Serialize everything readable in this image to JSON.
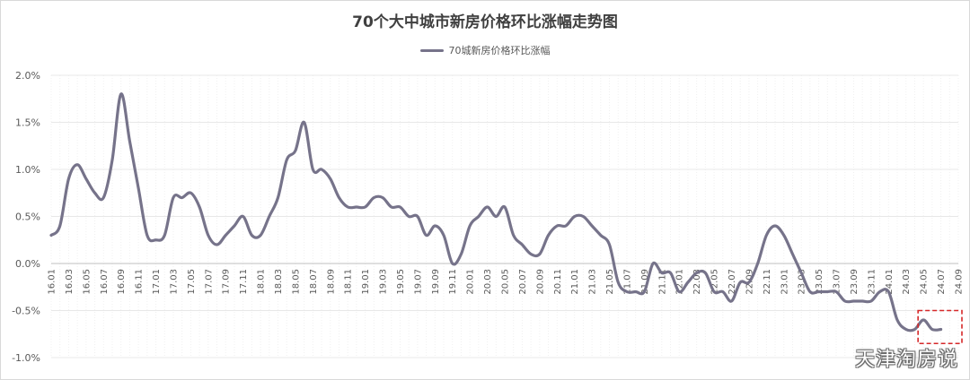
{
  "chart_data": {
    "type": "line",
    "title": "70个大中城市新房价格环比涨幅走势图",
    "legend_position": "top",
    "grid": true,
    "series": [
      {
        "name": "70城新房价格环比涨幅",
        "color": "#76738a",
        "values": [
          0.3,
          0.4,
          0.9,
          1.05,
          0.9,
          0.75,
          0.7,
          1.1,
          1.8,
          1.3,
          0.8,
          0.3,
          0.25,
          0.3,
          0.7,
          0.7,
          0.75,
          0.6,
          0.3,
          0.2,
          0.3,
          0.4,
          0.5,
          0.3,
          0.3,
          0.5,
          0.7,
          1.1,
          1.2,
          1.5,
          1.0,
          1.0,
          0.9,
          0.7,
          0.6,
          0.6,
          0.6,
          0.7,
          0.7,
          0.6,
          0.6,
          0.5,
          0.5,
          0.3,
          0.4,
          0.3,
          0.0,
          0.1,
          0.4,
          0.5,
          0.6,
          0.5,
          0.6,
          0.3,
          0.2,
          0.1,
          0.1,
          0.3,
          0.4,
          0.4,
          0.5,
          0.5,
          0.4,
          0.3,
          0.2,
          -0.2,
          -0.3,
          -0.3,
          -0.3,
          0.0,
          -0.1,
          -0.1,
          -0.3,
          -0.2,
          -0.1,
          -0.1,
          -0.3,
          -0.3,
          -0.4,
          -0.2,
          -0.2,
          0.0,
          0.3,
          0.4,
          0.3,
          0.1,
          -0.1,
          -0.3,
          -0.3,
          -0.3,
          -0.3,
          -0.4,
          -0.4,
          -0.4,
          -0.4,
          -0.3,
          -0.3,
          -0.6,
          -0.7,
          -0.7,
          -0.6,
          -0.7,
          -0.7
        ]
      }
    ],
    "x_start": "2016-01",
    "x_end": "2024-09",
    "tick_labels": [
      "16.01",
      "16.03",
      "16.05",
      "16.07",
      "16.09",
      "16.11",
      "17.01",
      "17.03",
      "17.05",
      "17.07",
      "17.09",
      "17.11",
      "18.01",
      "18.03",
      "18.05",
      "18.07",
      "18.09",
      "18.11",
      "19.01",
      "19.03",
      "19.05",
      "19.07",
      "19.09",
      "19.11",
      "20.01",
      "20.03",
      "20.05",
      "20.07",
      "20.09",
      "20.11",
      "21.01",
      "21.03",
      "21.05",
      "21.07",
      "21.09",
      "21.11",
      "22.01",
      "22.03",
      "22.05",
      "22.07",
      "22.09",
      "22.11",
      "23.01",
      "23.03",
      "23.05",
      "23.07",
      "23.09",
      "23.11",
      "24.01",
      "24.03",
      "24.05",
      "24.07",
      "24.09"
    ],
    "yticks": [
      "2.0%",
      "1.5%",
      "1.0%",
      "0.5%",
      "0.0%",
      "-0.5%",
      "-1.0%"
    ],
    "ylim": [
      -1.0,
      2.0
    ],
    "highlight": {
      "from": "2024-05",
      "to": "2024-09",
      "style": "red dashed box"
    }
  },
  "watermark": "天津淘房说"
}
